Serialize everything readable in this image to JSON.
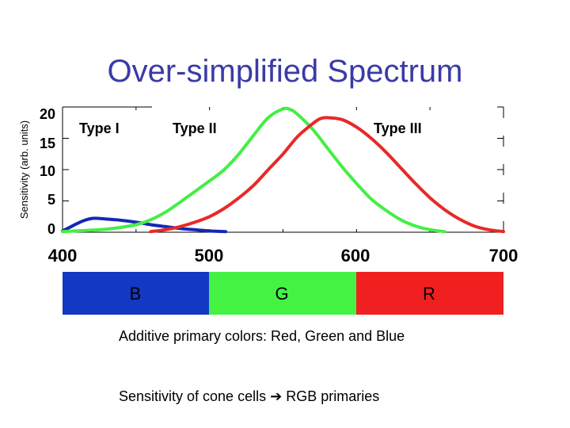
{
  "title": "Over-simplified Spectrum",
  "colors": {
    "title": "#3a3aa8",
    "type1": "#1428b4",
    "type2": "#44ee44",
    "type3": "#e82828",
    "band_b": "#1238c4",
    "band_g": "#44f244",
    "band_r": "#f02020"
  },
  "chart_data": {
    "type": "line",
    "title": "Over-simplified Spectrum",
    "xlabel": "",
    "ylabel": "Sensitivity (arb. units)",
    "xlim": [
      400,
      700
    ],
    "ylim": [
      0,
      20
    ],
    "x_ticks": [
      "400",
      "500",
      "600",
      "700"
    ],
    "y_ticks": [
      "0",
      "5",
      "10",
      "15",
      "20"
    ],
    "grid": false,
    "series": [
      {
        "name": "Type I",
        "color": "#1428b4",
        "x": [
          400,
          405,
          410,
          415,
          420,
          425,
          430,
          440,
          450,
          460,
          470,
          480,
          490,
          500,
          511
        ],
        "y": [
          0.2,
          0.8,
          1.4,
          1.9,
          2.2,
          2.2,
          2.1,
          1.9,
          1.6,
          1.2,
          0.9,
          0.6,
          0.4,
          0.2,
          0.1
        ]
      },
      {
        "name": "Type II",
        "color": "#44ee44",
        "x": [
          400,
          430,
          450,
          460,
          470,
          480,
          490,
          500,
          510,
          520,
          530,
          540,
          550,
          555,
          560,
          570,
          580,
          590,
          600,
          610,
          620,
          630,
          640,
          650,
          660
        ],
        "y": [
          0.1,
          0.5,
          1.2,
          2.0,
          3.2,
          4.8,
          6.5,
          8.2,
          10.0,
          12.5,
          15.5,
          18.3,
          19.7,
          19.6,
          18.8,
          16.5,
          13.5,
          10.5,
          7.8,
          5.3,
          3.5,
          2.0,
          1.0,
          0.4,
          0.1
        ]
      },
      {
        "name": "Type III",
        "color": "#e82828",
        "x": [
          460,
          470,
          480,
          490,
          500,
          510,
          520,
          530,
          540,
          550,
          560,
          570,
          575,
          580,
          590,
          600,
          610,
          620,
          630,
          640,
          650,
          660,
          670,
          680,
          690,
          700
        ],
        "y": [
          0.1,
          0.4,
          0.9,
          1.6,
          2.5,
          3.8,
          5.5,
          7.5,
          10.0,
          12.5,
          15.3,
          17.3,
          18.1,
          18.3,
          18.0,
          16.8,
          15.0,
          12.8,
          10.3,
          7.8,
          5.5,
          3.6,
          2.1,
          1.0,
          0.4,
          0.1
        ]
      }
    ]
  },
  "series_labels": [
    "Type I",
    "Type II",
    "Type III"
  ],
  "bands": [
    {
      "label": "B",
      "color": "#1238c4"
    },
    {
      "label": "G",
      "color": "#44f244"
    },
    {
      "label": "R",
      "color": "#f02020"
    }
  ],
  "captions": {
    "additive": "Additive primary colors: Red, Green and Blue",
    "sensitivity_prefix": "Sensitivity of cone cells",
    "arrow": "➔",
    "sensitivity_suffix": "RGB primaries"
  }
}
